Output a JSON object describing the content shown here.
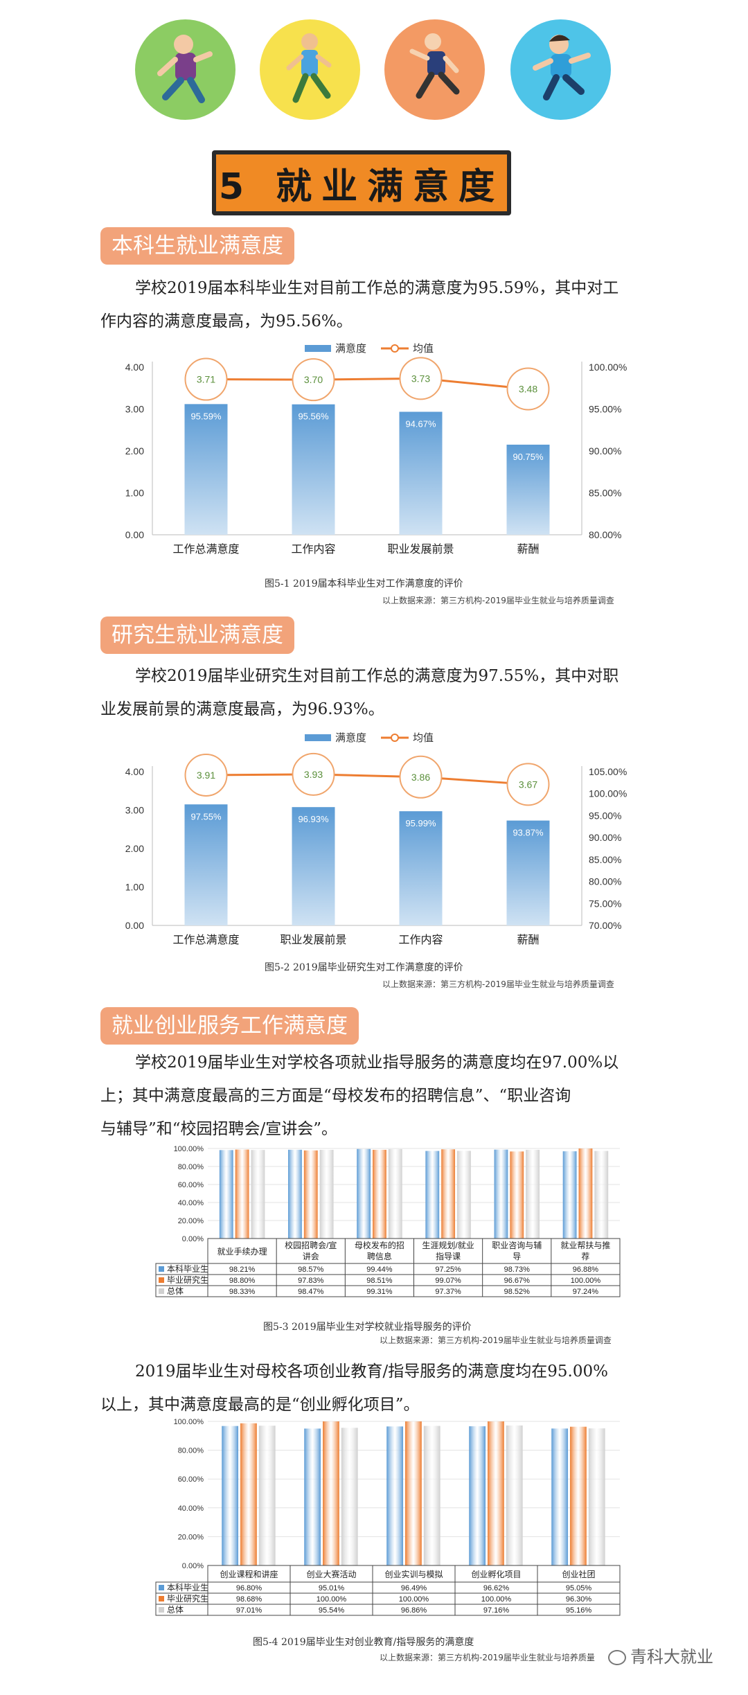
{
  "header": {
    "banner_title": "5 就业满意度",
    "circle_colors": [
      "#8ccc63",
      "#f7e14d",
      "#f39a64",
      "#4ec4e8"
    ]
  },
  "section1": {
    "tag": "本科生就业满意度",
    "para_line1": "学校2019届本科毕业生对目前工作总的满意度为95.59%，其中对工",
    "para_line2": "作内容的满意度最高，为95.56%。",
    "caption": "图5-1 2019届本科毕业生对工作满意度的评价",
    "source": "以上数据来源：第三方机构-2019届毕业生就业与培养质量调查"
  },
  "section2": {
    "tag": "研究生就业满意度",
    "para_line1": "学校2019届毕业研究生对目前工作总的满意度为97.55%，其中对职",
    "para_line2": "业发展前景的满意度最高，为96.93%。",
    "caption": "图5-2 2019届毕业研究生对工作满意度的评价",
    "source": "以上数据来源：第三方机构-2019届毕业生就业与培养质量调查"
  },
  "section3": {
    "tag": "就业创业服务工作满意度",
    "para_line1": "学校2019届毕业生对学校各项就业指导服务的满意度均在97.00%以",
    "para_line2": "上；其中满意度最高的三方面是“母校发布的招聘信息”、“职业咨询",
    "para_line3": "与辅导”和“校园招聘会/宣讲会”。",
    "caption": "图5-3 2019届毕业生对学校就业指导服务的评价",
    "source": "以上数据来源：第三方机构-2019届毕业生就业与培养质量调查"
  },
  "section4": {
    "para_line1": "2019届毕业生对母校各项创业教育/指导服务的满意度均在95.00%",
    "para_line2": "以上，其中满意度最高的是“创业孵化项目”。",
    "caption": "图5-4 2019届毕业生对创业教育/指导服务的满意度",
    "source": "以上数据来源：第三方机构-2019届毕业生就业与培养质量",
    "watermark": "青科大就业"
  },
  "chart_data": [
    {
      "type": "bar+line",
      "categories": [
        "工作总满意度",
        "工作内容",
        "职业发展前景",
        "薪酬"
      ],
      "legend": [
        "满意度",
        "均值"
      ],
      "bar_name": "满意度",
      "bar_values": [
        95.59,
        95.56,
        94.67,
        90.75
      ],
      "bar_labels": [
        "95.59%",
        "95.56%",
        "94.67%",
        "90.75%"
      ],
      "line_name": "均值",
      "line_values": [
        3.71,
        3.7,
        3.73,
        3.48
      ],
      "line_labels": [
        "3.71",
        "3.70",
        "3.73",
        "3.48"
      ],
      "left_axis": {
        "ylim": [
          0,
          4
        ],
        "ticks": [
          "4.00",
          "3.00",
          "2.00",
          "1.00",
          "0.00"
        ]
      },
      "right_axis": {
        "ylim": [
          80,
          100
        ],
        "ticks": [
          "100.00%",
          "95.00%",
          "90.00%",
          "85.00%",
          "80.00%"
        ]
      },
      "colors": {
        "bar": "#5b9bd5",
        "line": "#ed7d31"
      }
    },
    {
      "type": "bar+line",
      "categories": [
        "工作总满意度",
        "职业发展前景",
        "工作内容",
        "薪酬"
      ],
      "legend": [
        "满意度",
        "均值"
      ],
      "bar_name": "满意度",
      "bar_values": [
        97.55,
        96.93,
        95.99,
        93.87
      ],
      "bar_labels": [
        "97.55%",
        "96.93%",
        "95.99%",
        "93.87%"
      ],
      "line_name": "均值",
      "line_values": [
        3.91,
        3.93,
        3.86,
        3.67
      ],
      "line_labels": [
        "3.91",
        "3.93",
        "3.86",
        "3.67"
      ],
      "left_axis": {
        "ylim": [
          0,
          4
        ],
        "ticks": [
          "4.00",
          "3.00",
          "2.00",
          "1.00",
          "0.00"
        ]
      },
      "right_axis": {
        "ylim": [
          70,
          105
        ],
        "ticks": [
          "105.00%",
          "100.00%",
          "95.00%",
          "90.00%",
          "85.00%",
          "80.00%",
          "75.00%",
          "70.00%"
        ]
      },
      "colors": {
        "bar": "#5b9bd5",
        "line": "#ed7d31"
      }
    },
    {
      "type": "bar",
      "categories": [
        "就业手续办理",
        "校园招聘会/宣讲会",
        "母校发布的招聘信息",
        "生涯规划/就业指导课",
        "职业咨询与辅导",
        "就业帮扶与推荐"
      ],
      "category_lines": [
        [
          "就业手续办理"
        ],
        [
          "校园招聘会/宣",
          "讲会"
        ],
        [
          "母校发布的招",
          "聘信息"
        ],
        [
          "生涯规划/就业",
          "指导课"
        ],
        [
          "职业咨询与辅",
          "导"
        ],
        [
          "就业帮扶与推",
          "荐"
        ]
      ],
      "series": [
        {
          "name": "本科毕业生",
          "values": [
            98.21,
            98.57,
            99.44,
            97.25,
            98.73,
            96.88
          ],
          "labels": [
            "98.21%",
            "98.57%",
            "99.44%",
            "97.25%",
            "98.73%",
            "96.88%"
          ]
        },
        {
          "name": "毕业研究生",
          "values": [
            98.8,
            97.83,
            98.51,
            99.07,
            96.67,
            100.0
          ],
          "labels": [
            "98.80%",
            "97.83%",
            "98.51%",
            "99.07%",
            "96.67%",
            "100.00%"
          ]
        },
        {
          "name": "总体",
          "values": [
            98.33,
            98.47,
            99.31,
            97.37,
            98.52,
            97.24
          ],
          "labels": [
            "98.33%",
            "98.47%",
            "99.31%",
            "97.37%",
            "98.52%",
            "97.24%"
          ]
        }
      ],
      "ylim": [
        0,
        100
      ],
      "ticks": [
        "100.00%",
        "80.00%",
        "60.00%",
        "40.00%",
        "20.00%",
        "0.00%"
      ],
      "colors": [
        "#5b9bd5",
        "#ed7d31",
        "#d0d0d0"
      ]
    },
    {
      "type": "bar",
      "categories": [
        "创业课程和讲座",
        "创业大赛活动",
        "创业实训与模拟",
        "创业孵化项目",
        "创业社团"
      ],
      "category_lines": [
        [
          "创业课程和讲座"
        ],
        [
          "创业大赛活动"
        ],
        [
          "创业实训与模拟"
        ],
        [
          "创业孵化项目"
        ],
        [
          "创业社团"
        ]
      ],
      "series": [
        {
          "name": "本科毕业生",
          "values": [
            96.8,
            95.01,
            96.49,
            96.62,
            95.05
          ],
          "labels": [
            "96.80%",
            "95.01%",
            "96.49%",
            "96.62%",
            "95.05%"
          ]
        },
        {
          "name": "毕业研究生",
          "values": [
            98.68,
            100.0,
            100.0,
            100.0,
            96.3
          ],
          "labels": [
            "98.68%",
            "100.00%",
            "100.00%",
            "100.00%",
            "96.30%"
          ]
        },
        {
          "name": "总体",
          "values": [
            97.01,
            95.54,
            96.86,
            97.16,
            95.16
          ],
          "labels": [
            "97.01%",
            "95.54%",
            "96.86%",
            "97.16%",
            "95.16%"
          ]
        }
      ],
      "ylim": [
        0,
        100
      ],
      "ticks": [
        "100.00%",
        "80.00%",
        "60.00%",
        "40.00%",
        "20.00%",
        "0.00%"
      ],
      "colors": [
        "#5b9bd5",
        "#ed7d31",
        "#d0d0d0"
      ]
    }
  ]
}
